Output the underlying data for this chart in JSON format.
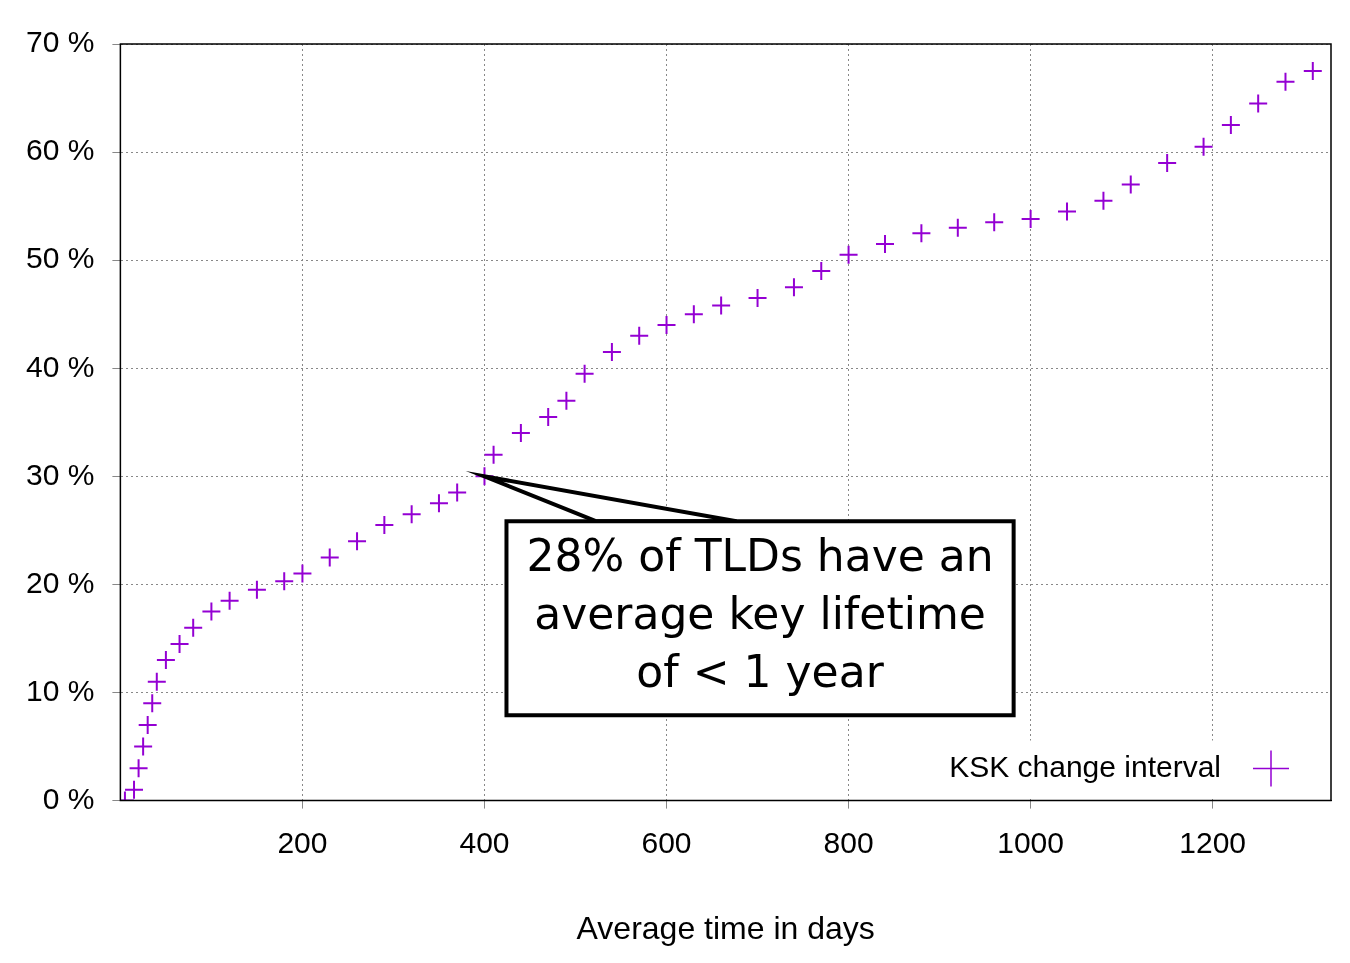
{
  "chart_data": {
    "type": "scatter",
    "xlabel": "Average time in days",
    "x": [
      5,
      15,
      20,
      25,
      30,
      35,
      40,
      50,
      65,
      80,
      100,
      120,
      150,
      180,
      200,
      230,
      260,
      290,
      320,
      350,
      370,
      400,
      410,
      440,
      470,
      490,
      510,
      540,
      570,
      600,
      630,
      660,
      700,
      740,
      770,
      800,
      840,
      880,
      920,
      960,
      1000,
      1040,
      1080,
      1110,
      1150,
      1190,
      1220,
      1250,
      1280,
      1310
    ],
    "series": [
      {
        "name": "KSK change interval",
        "color": "#9400d3",
        "values": [
          0,
          1,
          3,
          5,
          7,
          9,
          11,
          13,
          14.5,
          16,
          17.5,
          18.5,
          19.5,
          20.3,
          21,
          22.5,
          24,
          25.5,
          26.5,
          27.5,
          28.5,
          30,
          32,
          34,
          35.5,
          37,
          39.5,
          41.5,
          43,
          44,
          45,
          45.8,
          46.5,
          47.5,
          49,
          50.5,
          51.5,
          52.5,
          53,
          53.5,
          53.8,
          54.5,
          55.5,
          57,
          59,
          60.5,
          62.5,
          64.5,
          66.5,
          67.5
        ]
      }
    ],
    "xlim": [
      0,
      1330
    ],
    "xticks": [
      200,
      400,
      600,
      800,
      1000,
      1200
    ],
    "ylim": [
      0,
      70
    ],
    "yticks": [
      {
        "value": 0,
        "label": "0 %"
      },
      {
        "value": 10,
        "label": "10 %"
      },
      {
        "value": 20,
        "label": "20 %"
      },
      {
        "value": 30,
        "label": "30 %"
      },
      {
        "value": 40,
        "label": "40 %"
      },
      {
        "value": 50,
        "label": "50 %"
      },
      {
        "value": 60,
        "label": "60 %"
      },
      {
        "value": 70,
        "label": "70 %"
      }
    ],
    "annotations": [
      {
        "text": "28% of TLDs have an average key lifetime of < 1 year",
        "x": 400,
        "y": 30
      }
    ],
    "grid": true,
    "legend": "bottom right",
    "marker": "cross"
  }
}
